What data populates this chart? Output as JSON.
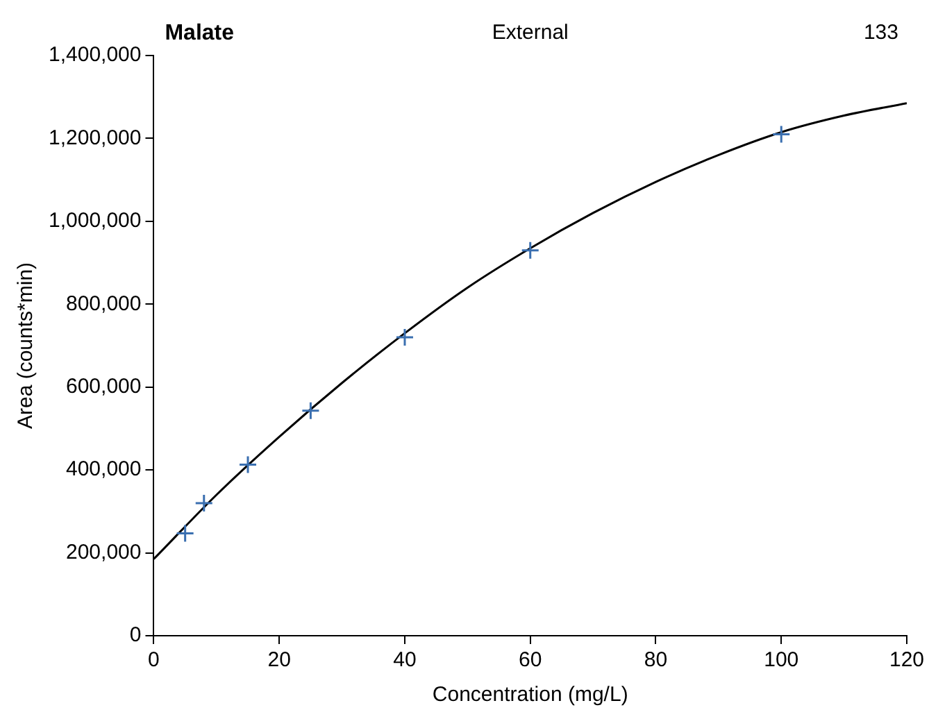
{
  "chart_data": {
    "type": "scatter",
    "title": "Malate",
    "subtitle": "External",
    "annotations": [
      "133"
    ],
    "xlabel": "Concentration (mg/L)",
    "ylabel": "Area (counts*min)",
    "xlim": [
      0,
      120
    ],
    "xticks": [
      0,
      20,
      40,
      60,
      80,
      100,
      120
    ],
    "ylim": [
      0,
      1400000
    ],
    "yticks": [
      0,
      {
        "value": 200000,
        "label": "200,000"
      },
      {
        "value": 400000,
        "label": "400,000"
      },
      {
        "value": 600000,
        "label": "600,000"
      },
      {
        "value": 800000,
        "label": "800,000"
      },
      {
        "value": 1000000,
        "label": "1,000,000"
      },
      {
        "value": 1200000,
        "label": "1,200,000"
      },
      {
        "value": 1400000,
        "label": "1,400,000"
      }
    ],
    "grid": false,
    "legend": false,
    "marker": "cross",
    "series": [
      {
        "color": "#3a6fb0",
        "x": [
          5,
          8,
          15,
          25,
          40,
          60,
          100
        ],
        "values": [
          247000,
          320000,
          413000,
          543000,
          720000,
          930000,
          1210000
        ]
      },
      {
        "type": "line",
        "color": "#000000",
        "marker": "none",
        "x": [
          0,
          10,
          20,
          30,
          40,
          50,
          60,
          70,
          80,
          90,
          100,
          110,
          120
        ],
        "values": [
          185000,
          340000,
          480000,
          610000,
          730000,
          840000,
          935000,
          1020000,
          1095000,
          1160000,
          1215000,
          1255000,
          1285000
        ]
      }
    ]
  }
}
